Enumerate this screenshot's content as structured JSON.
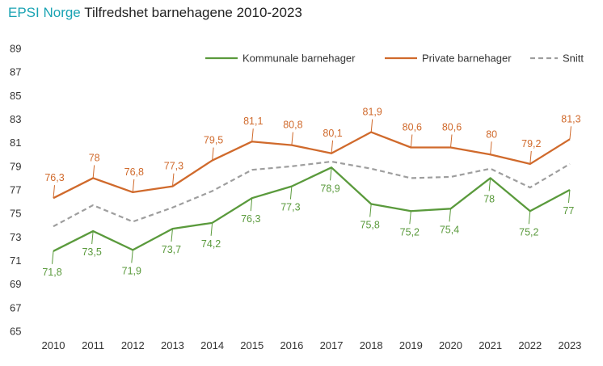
{
  "title": {
    "brand": "EPSI Norge",
    "text": "Tilfredshet barnehagene 2010-2023"
  },
  "chart_data": {
    "type": "line",
    "x": [
      "2010",
      "2011",
      "2012",
      "2013",
      "2014",
      "2015",
      "2016",
      "2017",
      "2018",
      "2019",
      "2020",
      "2021",
      "2022",
      "2023"
    ],
    "ylim": [
      65,
      89
    ],
    "yticks": [
      65,
      67,
      69,
      71,
      73,
      75,
      77,
      79,
      81,
      83,
      85,
      87,
      89
    ],
    "grid": false,
    "legend": "top-right",
    "series": [
      {
        "name": "Kommunale barnehager",
        "color": "#5a9a3c",
        "style": "solid",
        "values": [
          71.8,
          73.5,
          71.9,
          73.7,
          74.2,
          76.3,
          77.3,
          78.9,
          75.8,
          75.2,
          75.4,
          78,
          75.2,
          77
        ],
        "labels": [
          "71,8",
          "73,5",
          "71,9",
          "73,7",
          "74,2",
          "76,3",
          "77,3",
          "78,9",
          "75,8",
          "75,2",
          "75,4",
          "78",
          "75,2",
          "77"
        ]
      },
      {
        "name": "Private barnehager",
        "color": "#d06a2c",
        "style": "solid",
        "values": [
          76.3,
          78,
          76.8,
          77.3,
          79.5,
          81.1,
          80.8,
          80.1,
          81.9,
          80.6,
          80.6,
          80,
          79.2,
          81.3
        ],
        "labels": [
          "76,3",
          "78",
          "76,8",
          "77,3",
          "79,5",
          "81,1",
          "80,8",
          "80,1",
          "81,9",
          "80,6",
          "80,6",
          "80",
          "79,2",
          "81,3"
        ]
      },
      {
        "name": "Snitt",
        "color": "#9e9e9e",
        "style": "dashed",
        "values": [
          73.9,
          75.7,
          74.3,
          75.5,
          76.9,
          78.7,
          79.0,
          79.4,
          78.8,
          78.0,
          78.1,
          78.8,
          77.2,
          79.2
        ]
      }
    ]
  }
}
